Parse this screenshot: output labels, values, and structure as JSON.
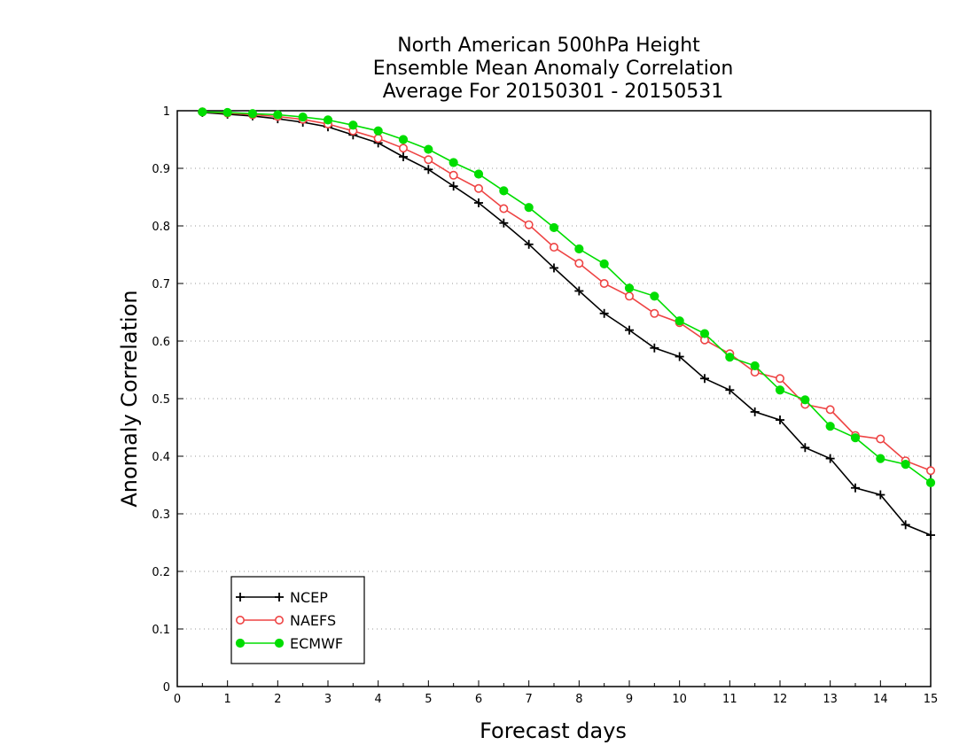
{
  "chart_data": {
    "type": "line",
    "title_lines": [
      "North American 500hPa Height",
      "Ensemble Mean Anomaly Correlation",
      "Average For 20150301 - 20150531"
    ],
    "xlabel": "Forecast days",
    "ylabel": "Anomaly Correlation",
    "xlim": [
      0,
      15
    ],
    "ylim": [
      0,
      1
    ],
    "xticks": [
      "0",
      "1",
      "2",
      "3",
      "4",
      "5",
      "6",
      "7",
      "8",
      "9",
      "10",
      "11",
      "12",
      "13",
      "14",
      "15"
    ],
    "yticks": [
      "0",
      "0.1",
      "0.2",
      "0.3",
      "0.4",
      "0.5",
      "0.6",
      "0.7",
      "0.8",
      "0.9",
      "1"
    ],
    "grid": "horizontal dotted",
    "legend_position": "bottom-left",
    "x": [
      0.5,
      1,
      1.5,
      2,
      2.5,
      3,
      3.5,
      4,
      4.5,
      5,
      5.5,
      6,
      6.5,
      7,
      7.5,
      8,
      8.5,
      9,
      9.5,
      10,
      10.5,
      11,
      11.5,
      12,
      12.5,
      13,
      13.5,
      14,
      14.5,
      15
    ],
    "series": [
      {
        "name": "NCEP",
        "color": "#000000",
        "marker": "plus",
        "values": [
          0.997,
          0.994,
          0.991,
          0.986,
          0.98,
          0.972,
          0.958,
          0.944,
          0.92,
          0.898,
          0.869,
          0.84,
          0.805,
          0.768,
          0.727,
          0.687,
          0.648,
          0.619,
          0.588,
          0.573,
          0.535,
          0.515,
          0.477,
          0.463,
          0.415,
          0.396,
          0.345,
          0.333,
          0.281,
          0.263
        ]
      },
      {
        "name": "NAEFS",
        "color": "#ee4444",
        "marker": "open-circle",
        "values": [
          0.998,
          0.996,
          0.993,
          0.99,
          0.985,
          0.977,
          0.965,
          0.952,
          0.935,
          0.915,
          0.888,
          0.865,
          0.83,
          0.802,
          0.763,
          0.735,
          0.7,
          0.678,
          0.648,
          0.632,
          0.602,
          0.578,
          0.546,
          0.535,
          0.49,
          0.481,
          0.436,
          0.43,
          0.392,
          0.375
        ]
      },
      {
        "name": "ECMWF",
        "color": "#00dd00",
        "marker": "filled-circle",
        "values": [
          0.998,
          0.997,
          0.995,
          0.993,
          0.989,
          0.984,
          0.975,
          0.965,
          0.95,
          0.933,
          0.91,
          0.89,
          0.861,
          0.832,
          0.797,
          0.76,
          0.734,
          0.692,
          0.678,
          0.635,
          0.613,
          0.572,
          0.557,
          0.515,
          0.498,
          0.452,
          0.432,
          0.396,
          0.386,
          0.354
        ]
      }
    ]
  }
}
